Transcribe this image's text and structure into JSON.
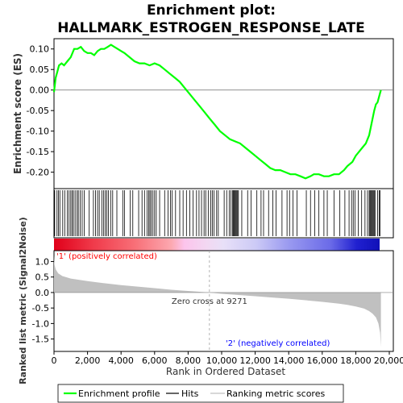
{
  "chart_data": {
    "type": "line",
    "title_line1": "Enrichment plot:",
    "title_line2": "HALLMARK_ESTROGEN_RESPONSE_LATE",
    "top_panel": {
      "ylabel": "Enrichment score (ES)",
      "ylim": [
        -0.24,
        0.125
      ],
      "yticks": [
        0.1,
        0.05,
        0.0,
        -0.05,
        -0.1,
        -0.15,
        -0.2
      ],
      "ytick_labels": [
        "0.10",
        "0.05",
        "0.00",
        "-0.05",
        "-0.10",
        "-0.15",
        "-0.20"
      ],
      "series": [
        {
          "name": "Enrichment profile",
          "color": "#00ff00",
          "x": [
            0,
            100,
            200,
            300,
            450,
            600,
            800,
            1000,
            1200,
            1400,
            1600,
            1800,
            2000,
            2200,
            2400,
            2600,
            2800,
            3000,
            3200,
            3400,
            3600,
            3800,
            4000,
            4200,
            4500,
            4800,
            5100,
            5400,
            5700,
            6000,
            6300,
            6600,
            6900,
            7200,
            7500,
            7800,
            8100,
            8400,
            8700,
            9000,
            9300,
            9600,
            9900,
            10200,
            10500,
            10800,
            11100,
            11400,
            11700,
            12000,
            12300,
            12600,
            12900,
            13200,
            13500,
            13800,
            14100,
            14400,
            14700,
            15000,
            15300,
            15500,
            15800,
            16100,
            16400,
            16700,
            17000,
            17300,
            17500,
            17800,
            18000,
            18200,
            18400,
            18600,
            18800,
            18900,
            19000,
            19100,
            19200,
            19300,
            19400,
            19500
          ],
          "y": [
            -0.005,
            0.03,
            0.045,
            0.06,
            0.065,
            0.06,
            0.07,
            0.08,
            0.1,
            0.1,
            0.105,
            0.095,
            0.09,
            0.09,
            0.085,
            0.095,
            0.1,
            0.1,
            0.105,
            0.11,
            0.105,
            0.1,
            0.095,
            0.09,
            0.08,
            0.07,
            0.065,
            0.065,
            0.06,
            0.065,
            0.06,
            0.05,
            0.04,
            0.03,
            0.02,
            0.005,
            -0.01,
            -0.025,
            -0.04,
            -0.055,
            -0.07,
            -0.085,
            -0.1,
            -0.11,
            -0.12,
            -0.125,
            -0.13,
            -0.14,
            -0.15,
            -0.16,
            -0.17,
            -0.18,
            -0.19,
            -0.195,
            -0.195,
            -0.2,
            -0.205,
            -0.205,
            -0.21,
            -0.215,
            -0.21,
            -0.205,
            -0.205,
            -0.21,
            -0.21,
            -0.205,
            -0.205,
            -0.195,
            -0.185,
            -0.175,
            -0.16,
            -0.15,
            -0.14,
            -0.13,
            -0.11,
            -0.09,
            -0.07,
            -0.05,
            -0.035,
            -0.03,
            -0.015,
            0.0
          ]
        }
      ]
    },
    "hits_panel": {
      "legend_name": "Hits",
      "hit_positions": [
        40,
        180,
        260,
        350,
        520,
        640,
        800,
        900,
        1000,
        1080,
        1160,
        1260,
        1380,
        1450,
        1560,
        1680,
        1800,
        2100,
        2350,
        2480,
        2600,
        2700,
        2850,
        2950,
        3050,
        3150,
        3250,
        3380,
        3500,
        3750,
        4100,
        4200,
        4550,
        4700,
        5050,
        5250,
        5400,
        5550,
        5650,
        5720,
        5800,
        5900,
        6000,
        6100,
        6300,
        6600,
        6800,
        6950,
        7050,
        7250,
        7500,
        7700,
        7900,
        8100,
        8300,
        8500,
        8650,
        8800,
        8950,
        9050,
        9200,
        9350,
        9450,
        9550,
        9700,
        9800,
        10150,
        10300,
        10450,
        10550,
        10650,
        10700,
        10750,
        10800,
        10850,
        10900,
        10950,
        11000,
        11200,
        11550,
        11750,
        12100,
        12350,
        12500,
        12800,
        13050,
        13250,
        13600,
        13900,
        14050,
        14250,
        14500,
        15050,
        15300,
        15550,
        15800,
        16100,
        16300,
        16700,
        17050,
        17350,
        17600,
        17750,
        17850,
        17950,
        18150,
        18350,
        18550,
        18700,
        18800,
        18850,
        18900,
        18950,
        19000,
        19050,
        19100,
        19150,
        19300,
        19400,
        19450
      ]
    },
    "colorbar": {
      "label_positive": "'1' (positively correlated)",
      "label_negative": "'2' (negatively correlated)"
    },
    "bottom_panel": {
      "ylabel": "Ranked list metric (Signal2Noise)",
      "ylim": [
        -1.9,
        1.35
      ],
      "yticks": [
        1.0,
        0.5,
        0.0,
        -0.5,
        -1.0,
        -1.5
      ],
      "ytick_labels": [
        "1.0",
        "0.5",
        "0.0",
        "-0.5",
        "-1.0",
        "-1.5"
      ],
      "series_name": "Ranking metric scores",
      "metric_x": [
        0,
        30,
        100,
        250,
        500,
        1000,
        2000,
        3000,
        4000,
        5000,
        6000,
        7000,
        8000,
        9000,
        9271,
        10000,
        11000,
        12000,
        13000,
        14000,
        15000,
        16000,
        17000,
        17500,
        18000,
        18500,
        18800,
        19000,
        19200,
        19350,
        19450,
        19500
      ],
      "metric_y": [
        1.2,
        0.9,
        0.75,
        0.62,
        0.53,
        0.45,
        0.37,
        0.3,
        0.24,
        0.19,
        0.14,
        0.09,
        0.05,
        0.01,
        0.0,
        -0.04,
        -0.08,
        -0.12,
        -0.16,
        -0.2,
        -0.25,
        -0.3,
        -0.36,
        -0.4,
        -0.45,
        -0.52,
        -0.6,
        -0.68,
        -0.8,
        -1.0,
        -1.3,
        -1.75
      ],
      "zero_cross_label": "Zero cross at 9271",
      "zero_cross_x": 9271
    },
    "xaxis": {
      "xlabel": "Rank in Ordered Dataset",
      "xlim": [
        0,
        20000
      ],
      "xticks": [
        0,
        2000,
        4000,
        6000,
        8000,
        10000,
        12000,
        14000,
        16000,
        18000,
        20000
      ],
      "xtick_labels": [
        "0",
        "2,000",
        "4,000",
        "6,000",
        "8,000",
        "10,000",
        "12,000",
        "14,000",
        "16,000",
        "18,000",
        "20,000"
      ],
      "n_genes": 19500
    },
    "legend": {
      "placement": "bottom",
      "entries": [
        "Enrichment profile",
        "Hits",
        "Ranking metric scores"
      ]
    },
    "colors": {
      "enrichment": "#00ff00",
      "hits": "#000000",
      "metric": "#c0c0c0",
      "zero_line": "#808080",
      "positive_label": "#ff0000",
      "negative_label": "#0000ff"
    }
  }
}
